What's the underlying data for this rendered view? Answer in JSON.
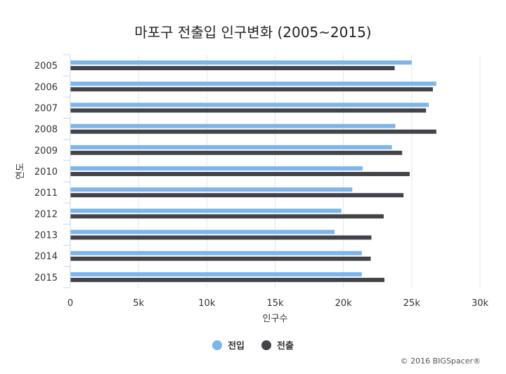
{
  "chart_data": {
    "type": "bar",
    "orientation": "horizontal",
    "title": "마포구 전출입 인구변화 (2005~2015)",
    "xlabel": "인구수",
    "ylabel": "연도",
    "categories": [
      "2005",
      "2006",
      "2007",
      "2008",
      "2009",
      "2010",
      "2011",
      "2012",
      "2013",
      "2014",
      "2015"
    ],
    "xlim": [
      0,
      30000
    ],
    "xticks": [
      0,
      5000,
      10000,
      15000,
      20000,
      25000,
      30000
    ],
    "xtick_labels": [
      "0",
      "5k",
      "10k",
      "15k",
      "20k",
      "25k",
      "30k"
    ],
    "grid": true,
    "legend_position": "bottom",
    "series": [
      {
        "name": "전입",
        "color": "#7cb5ec",
        "values": [
          25000,
          26800,
          26250,
          23800,
          23550,
          21400,
          20650,
          19850,
          19350,
          21350,
          21350
        ]
      },
      {
        "name": "전출",
        "color": "#434348",
        "values": [
          23750,
          26550,
          26050,
          26800,
          24300,
          24850,
          24400,
          22950,
          22050,
          22000,
          23000
        ]
      }
    ]
  },
  "credit": "© 2016 BIGSpacer®"
}
